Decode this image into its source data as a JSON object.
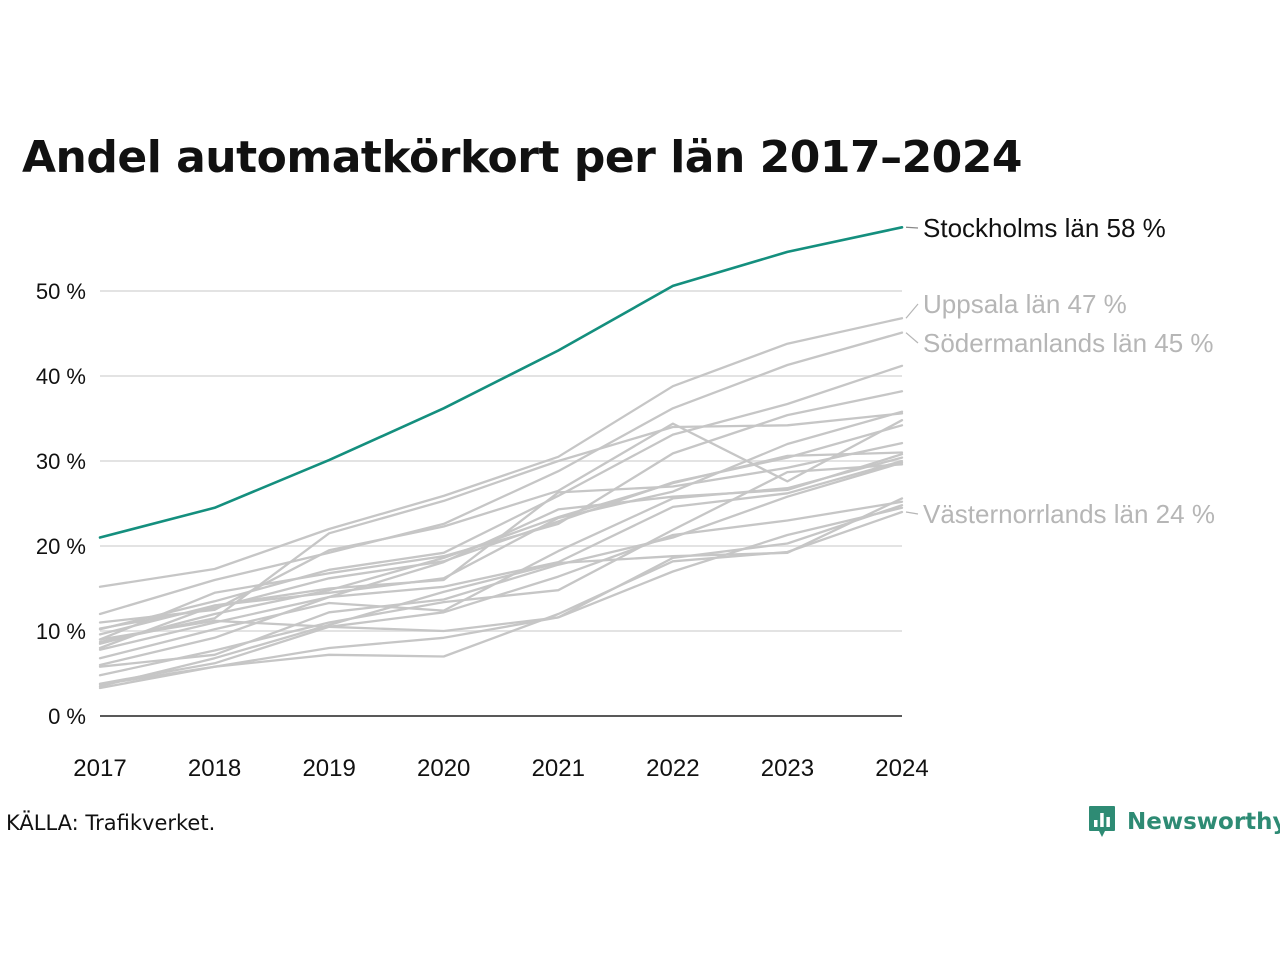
{
  "title": "Andel automatkörkort per län 2017–2024",
  "source": "KÄLLA: Trafikverket.",
  "brand": {
    "name": "Newsworthy",
    "icon": "bar-chart-speech-bubble-icon"
  },
  "colors": {
    "highlight": "#148f7e",
    "muted": "#c6c6c6",
    "grid": "#e3e3e3",
    "axis": "#222222",
    "brand": "#2e8b74"
  },
  "chart_data": {
    "type": "line",
    "title": "Andel automatkörkort per län 2017–2024",
    "xlabel": "",
    "ylabel": "",
    "x": [
      2017,
      2018,
      2019,
      2020,
      2021,
      2022,
      2023,
      2024
    ],
    "x_tick_labels": [
      "2017",
      "2018",
      "2019",
      "2020",
      "2021",
      "2022",
      "2023",
      "2024"
    ],
    "ylim": [
      0,
      58
    ],
    "y_ticks": [
      0,
      10,
      20,
      30,
      40,
      50
    ],
    "y_tick_labels": [
      "0 %",
      "10 %",
      "20 %",
      "30 %",
      "40 %",
      "50 %"
    ],
    "grid": "horizontal",
    "series": [
      {
        "name": "Stockholms län",
        "label": "Stockholms län 58 %",
        "highlight": true,
        "values": [
          21.0,
          24.5,
          30.1,
          36.2,
          43.0,
          50.6,
          54.6,
          57.5
        ]
      },
      {
        "name": "Uppsala län",
        "label": "Uppsala län 47 %",
        "values": [
          15.2,
          17.3,
          22.0,
          25.9,
          30.5,
          38.8,
          43.8,
          46.8
        ]
      },
      {
        "name": "Södermanlands län",
        "label": "Södermanlands län 45 %",
        "values": [
          12.0,
          16.0,
          19.2,
          22.6,
          28.8,
          36.2,
          41.3,
          45.1
        ]
      },
      {
        "values": [
          10.2,
          13.5,
          17.2,
          19.2,
          25.9,
          33.1,
          36.7,
          41.2
        ]
      },
      {
        "values": [
          9.0,
          14.5,
          16.8,
          18.8,
          22.6,
          30.9,
          35.4,
          38.2
        ]
      },
      {
        "values": [
          8.7,
          11.5,
          21.5,
          25.3,
          30.0,
          34.0,
          34.2,
          35.6
        ]
      },
      {
        "values": [
          11.0,
          12.5,
          19.5,
          22.3,
          26.5,
          34.4,
          27.6,
          34.8
        ]
      },
      {
        "values": [
          8.0,
          13.0,
          14.5,
          16.2,
          23.3,
          26.4,
          32.0,
          35.8
        ]
      },
      {
        "values": [
          10.3,
          12.7,
          16.2,
          18.2,
          22.9,
          27.5,
          30.4,
          34.2
        ]
      },
      {
        "values": [
          9.6,
          13.0,
          15.0,
          16.0,
          26.3,
          27.0,
          29.2,
          32.1
        ]
      },
      {
        "values": [
          8.5,
          12.0,
          14.8,
          18.6,
          23.4,
          27.4,
          30.6,
          31.0
        ]
      },
      {
        "values": [
          7.8,
          11.0,
          14.0,
          18.1,
          24.3,
          25.8,
          26.6,
          30.8
        ]
      },
      {
        "values": [
          6.8,
          10.2,
          13.3,
          12.4,
          19.4,
          25.6,
          26.8,
          30.4
        ]
      },
      {
        "values": [
          6.0,
          9.2,
          14.0,
          15.2,
          18.1,
          24.6,
          26.2,
          30.0
        ]
      },
      {
        "values": [
          5.8,
          7.2,
          12.2,
          13.7,
          17.8,
          21.0,
          25.8,
          29.8
        ]
      },
      {
        "values": [
          4.8,
          7.7,
          11.0,
          13.4,
          14.8,
          21.9,
          28.7,
          29.6
        ]
      },
      {
        "values": [
          3.5,
          6.8,
          10.7,
          14.6,
          18.0,
          18.8,
          19.2,
          25.6
        ]
      },
      {
        "values": [
          3.8,
          6.2,
          10.5,
          12.2,
          16.4,
          21.3,
          23.0,
          25.2
        ]
      },
      {
        "values": [
          3.3,
          5.8,
          8.0,
          9.2,
          11.6,
          17.0,
          21.3,
          24.5
        ]
      },
      {
        "name": "Västernorrlands län",
        "label": "Västernorrlands län 24 %",
        "values": [
          3.7,
          5.8,
          7.2,
          7.0,
          12.0,
          18.2,
          19.3,
          24.0
        ]
      },
      {
        "values": [
          9.0,
          11.2,
          10.5,
          10.0,
          11.6,
          18.6,
          20.3,
          24.8
        ]
      }
    ],
    "label_colors": {
      "highlight": "#111111",
      "muted": "#b6b6b6"
    }
  }
}
